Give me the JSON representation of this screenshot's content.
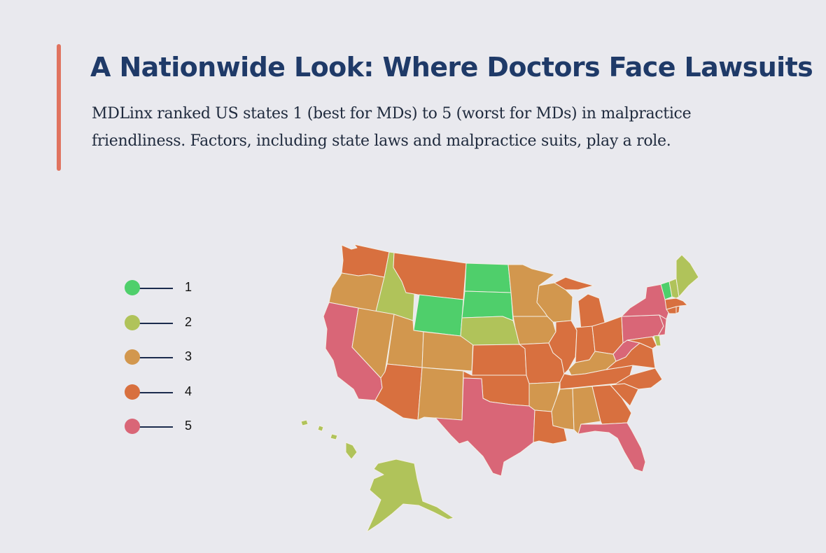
{
  "header": {
    "title": "A Nationwide Look: Where Doctors Face Lawsuits",
    "subtitle": "MDLinx ranked US states 1 (best for MDs) to 5 (worst for MDs) in malpractice friendliness. Factors, including state laws and malpractice suits, play a role."
  },
  "colors": {
    "accent": "#e0735f",
    "title": "#1f3a68",
    "background": "#e9e9ee",
    "rank_1": "#4fcf6b",
    "rank_2": "#b0c35a",
    "rank_3": "#d2974e",
    "rank_4": "#d8703f",
    "rank_5": "#d96677"
  },
  "legend": [
    {
      "label": "1",
      "color": "#4fcf6b"
    },
    {
      "label": "2",
      "color": "#b0c35a"
    },
    {
      "label": "3",
      "color": "#d2974e"
    },
    {
      "label": "4",
      "color": "#d8703f"
    },
    {
      "label": "5",
      "color": "#d96677"
    }
  ],
  "map": {
    "states": {
      "WA": 4,
      "OR": 3,
      "CA": 5,
      "ID": 2,
      "NV": 3,
      "MT": 4,
      "WY": 1,
      "UT": 3,
      "AZ": 4,
      "CO": 3,
      "NM": 3,
      "ND": 1,
      "SD": 1,
      "NE": 2,
      "KS": 4,
      "OK": 4,
      "TX": 5,
      "MN": 3,
      "IA": 3,
      "MO": 4,
      "AR": 3,
      "LA": 4,
      "WI": 3,
      "IL": 4,
      "MI": 4,
      "IN": 4,
      "OH": 4,
      "KY": 3,
      "TN": 4,
      "MS": 3,
      "AL": 3,
      "GA": 4,
      "FL": 5,
      "SC": 4,
      "NC": 4,
      "VA": 4,
      "WV": 5,
      "PA": 5,
      "NY": 5,
      "VT": 1,
      "NH": 2,
      "ME": 2,
      "MA": 4,
      "CT": 4,
      "RI": 4,
      "NJ": 5,
      "DE": 2,
      "MD": 4,
      "AK": 2,
      "HI": 2
    }
  }
}
